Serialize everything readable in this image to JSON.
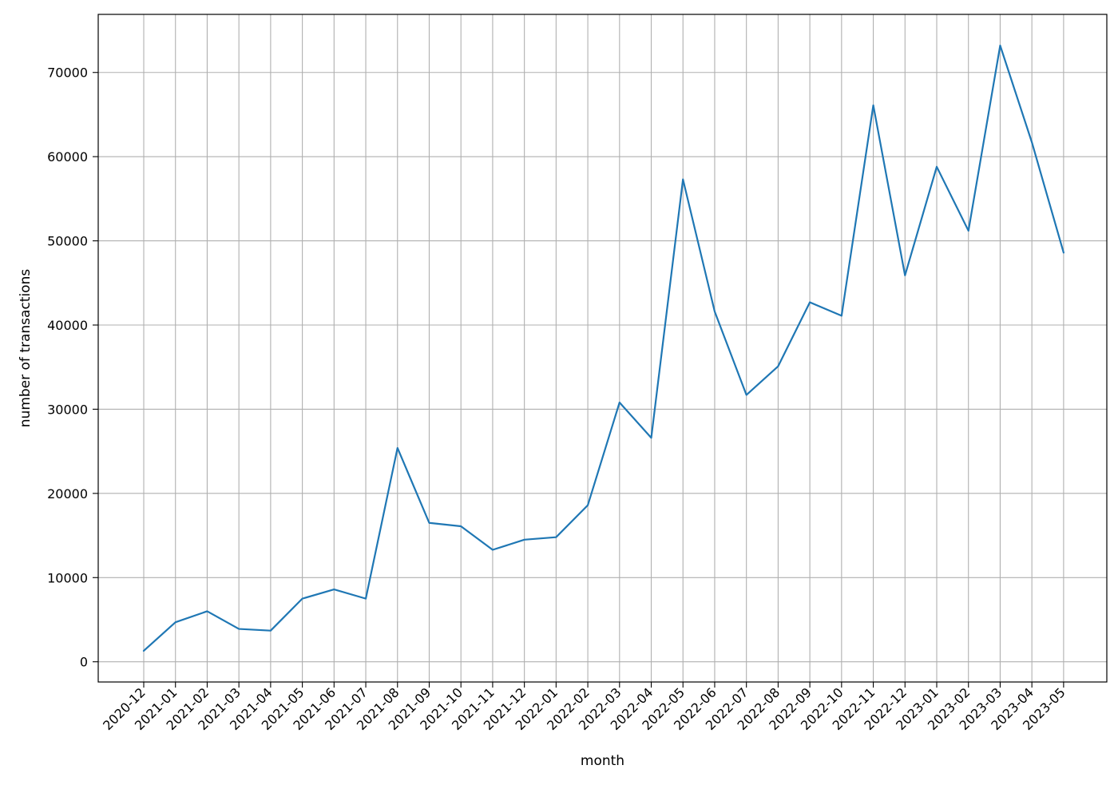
{
  "chart_data": {
    "type": "line",
    "title": "",
    "xlabel": "month",
    "ylabel": "number of transactions",
    "categories": [
      "2020-12",
      "2021-01",
      "2021-02",
      "2021-03",
      "2021-04",
      "2021-05",
      "2021-06",
      "2021-07",
      "2021-08",
      "2021-09",
      "2021-10",
      "2021-11",
      "2021-12",
      "2022-01",
      "2022-02",
      "2022-03",
      "2022-04",
      "2022-05",
      "2022-06",
      "2022-07",
      "2022-08",
      "2022-09",
      "2022-10",
      "2022-11",
      "2022-12",
      "2023-01",
      "2023-02",
      "2023-03",
      "2023-04",
      "2023-05"
    ],
    "series": [
      {
        "values": [
          1300,
          4700,
          6000,
          3900,
          3700,
          7500,
          8600,
          7500,
          25400,
          16500,
          16100,
          13300,
          14500,
          14800,
          18600,
          30800,
          26600,
          57300,
          41600,
          31700,
          35100,
          42700,
          41100,
          66100,
          45900,
          58800,
          51200,
          73200,
          61700,
          48600
        ]
      }
    ],
    "yticks": [
      0,
      10000,
      20000,
      30000,
      40000,
      50000,
      60000,
      70000
    ],
    "ylim": [
      -2400,
      76900
    ],
    "grid": true,
    "legend": "none",
    "colors": {
      "line": "#1f77b4",
      "grid": "#b0b0b0",
      "axes": "#000000",
      "background": "#ffffff"
    }
  }
}
